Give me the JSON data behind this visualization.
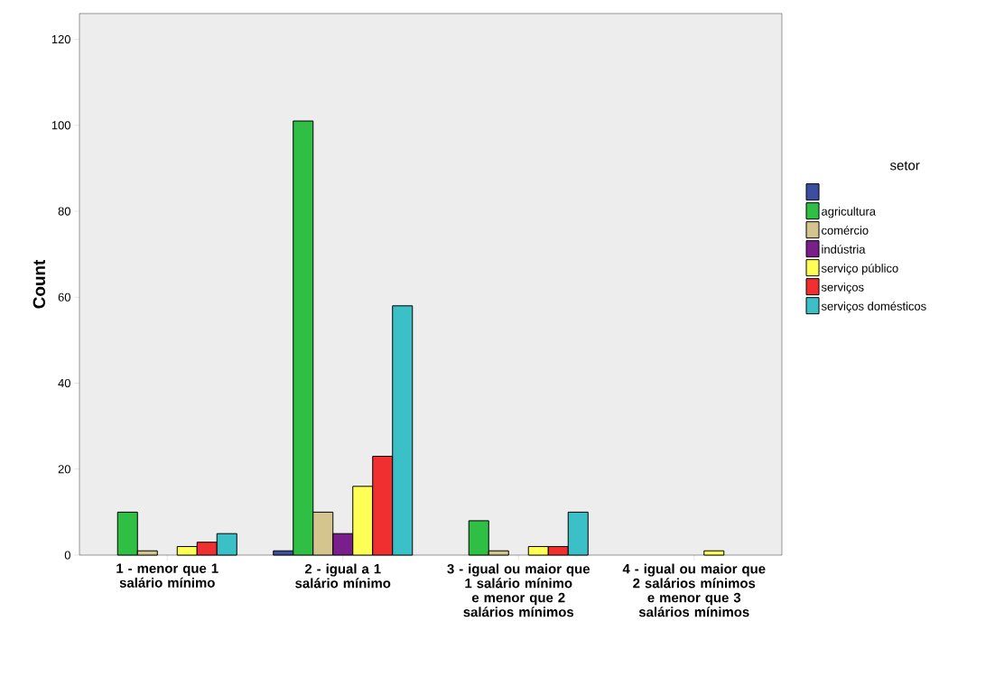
{
  "chart_data": {
    "type": "bar",
    "ylabel": "Count",
    "legend_title": "setor",
    "legend": "right",
    "categories": [
      "1 - menor que 1 salário mínimo",
      "2 - igual a 1 salário mínimo",
      "3 - igual ou maior que 1 salário mínimo e menor que 2 salários mínimos",
      "4 - igual ou maior que 2 salários mínimos e menor que 3 salários mínimos"
    ],
    "series": [
      {
        "color": "#3b4ea0",
        "values": [
          null,
          1,
          null,
          null
        ]
      },
      {
        "name": "agricultura",
        "color": "#2fbf45",
        "values": [
          10,
          101,
          8,
          null
        ]
      },
      {
        "name": "comércio",
        "color": "#d4c58f",
        "values": [
          1,
          10,
          1,
          null
        ]
      },
      {
        "name": "indústria",
        "color": "#7a1e8c",
        "values": [
          null,
          5,
          null,
          null
        ]
      },
      {
        "name": "serviço público",
        "color": "#ffff55",
        "values": [
          2,
          16,
          2,
          1
        ]
      },
      {
        "name": "serviços",
        "color": "#f03030",
        "values": [
          3,
          23,
          2,
          null
        ]
      },
      {
        "name": "serviços domésticos",
        "color": "#3cc0c8",
        "values": [
          5,
          58,
          10,
          null
        ]
      }
    ],
    "ylim": [
      0,
      126
    ],
    "yticks": [
      0,
      20,
      40,
      60,
      80,
      100,
      120
    ],
    "grid": false
  }
}
